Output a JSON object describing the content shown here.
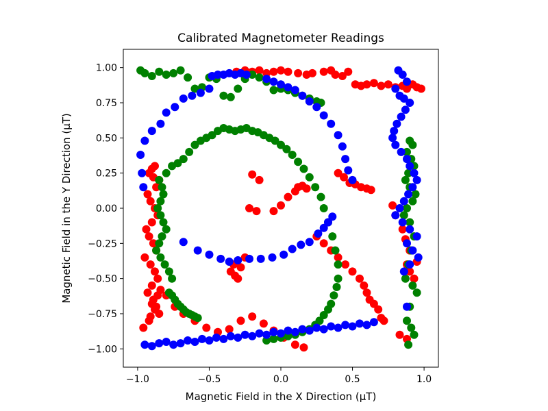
{
  "chart_data": {
    "type": "scatter",
    "title": "Calibrated Magnetometer Readings",
    "xlabel": "Magnetic Field in the X Direction (μT)",
    "ylabel": "Magnetic Field in the Y Direction (μT)",
    "xlim": [
      -1.1,
      1.1
    ],
    "ylim": [
      -1.13,
      1.13
    ],
    "xticks": [
      -1.0,
      -0.5,
      0.0,
      0.5,
      1.0
    ],
    "xtick_labels": [
      "−1.0",
      "−0.5",
      "0.0",
      "0.5",
      "1.0"
    ],
    "yticks": [
      -1.0,
      -0.75,
      -0.5,
      -0.25,
      0.0,
      0.25,
      0.5,
      0.75,
      1.0
    ],
    "ytick_labels": [
      "−1.00",
      "−0.75",
      "−0.50",
      "−0.25",
      "0.00",
      "0.25",
      "0.50",
      "0.75",
      "1.00"
    ],
    "grid": false,
    "legend": "none",
    "series": [
      {
        "color": "#ff0000",
        "x": [
          -0.31,
          -0.25,
          -0.2,
          -0.15,
          -0.1,
          -0.05,
          0.0,
          0.05,
          0.12,
          0.18,
          0.22,
          0.3,
          0.35,
          0.38,
          0.43,
          0.47,
          0.52,
          0.56,
          0.6,
          0.65,
          0.7,
          0.75,
          0.8,
          0.85,
          0.88,
          0.92,
          0.95,
          0.98,
          -0.88,
          -0.9,
          -0.92,
          -0.89,
          -0.85,
          -0.87,
          -0.93,
          -0.91,
          -0.88,
          -0.86,
          -0.9,
          -0.94,
          -0.92,
          -0.89,
          -0.87,
          -0.95,
          -0.91,
          -0.88,
          -0.86,
          -0.9,
          -0.93,
          -0.89,
          -0.87,
          -0.85,
          -0.92,
          -0.96,
          -0.9,
          -0.88,
          -0.84,
          -0.86,
          -0.91,
          -0.8,
          -0.74,
          -0.68,
          -0.6,
          -0.52,
          -0.44,
          -0.36,
          -0.28,
          -0.2,
          -0.12,
          -0.05,
          0.02,
          0.1,
          0.16,
          -0.2,
          -0.15,
          -0.22,
          -0.17,
          -0.05,
          0.0,
          0.05,
          0.1,
          0.12,
          0.15,
          0.18,
          -0.3,
          -0.32,
          -0.35,
          -0.28,
          -0.33,
          -0.25,
          0.4,
          0.44,
          0.48,
          0.52,
          0.56,
          0.6,
          0.63,
          0.72,
          0.7,
          0.68,
          0.65,
          0.62,
          0.6,
          0.58,
          0.55,
          0.5,
          0.45,
          0.4,
          0.35,
          0.3,
          0.25,
          0.88,
          0.9,
          0.93,
          0.95,
          0.9,
          0.87,
          0.85,
          0.8,
          0.78,
          0.83,
          0.88
        ],
        "y": [
          0.97,
          0.98,
          0.97,
          0.98,
          0.96,
          0.97,
          0.98,
          0.97,
          0.96,
          0.95,
          0.96,
          0.97,
          0.98,
          0.95,
          0.94,
          0.97,
          0.88,
          0.87,
          0.88,
          0.89,
          0.87,
          0.88,
          0.86,
          0.87,
          0.85,
          0.88,
          0.86,
          0.85,
          0.3,
          0.28,
          0.25,
          0.22,
          0.2,
          0.15,
          0.1,
          0.05,
          0.0,
          -0.05,
          -0.1,
          -0.15,
          -0.2,
          -0.25,
          -0.3,
          -0.35,
          -0.4,
          -0.45,
          -0.5,
          -0.55,
          -0.6,
          -0.65,
          -0.7,
          -0.75,
          -0.8,
          -0.85,
          -0.68,
          -0.72,
          -0.58,
          -0.62,
          -0.77,
          -0.62,
          -0.7,
          -0.75,
          -0.8,
          -0.85,
          -0.88,
          -0.86,
          -0.8,
          -0.77,
          -0.82,
          -0.87,
          -0.92,
          -0.97,
          -0.99,
          0.24,
          0.2,
          0.0,
          -0.02,
          -0.02,
          0.02,
          0.08,
          0.12,
          0.15,
          0.16,
          0.14,
          -0.5,
          -0.48,
          -0.45,
          -0.42,
          -0.4,
          -0.35,
          0.25,
          0.22,
          0.18,
          0.17,
          0.15,
          0.14,
          0.13,
          -0.8,
          -0.78,
          -0.72,
          -0.68,
          -0.65,
          -0.6,
          -0.55,
          -0.5,
          -0.45,
          -0.4,
          -0.35,
          -0.3,
          -0.25,
          -0.2,
          -0.4,
          -0.45,
          -0.5,
          -0.38,
          -0.3,
          -0.22,
          -0.15,
          -0.05,
          0.02,
          -0.9,
          -0.93
        ]
      },
      {
        "color": "#008000",
        "x": [
          -0.98,
          -0.95,
          -0.9,
          -0.85,
          -0.8,
          -0.75,
          -0.7,
          -0.65,
          -0.6,
          -0.55,
          -0.5,
          -0.45,
          -0.4,
          -0.35,
          -0.3,
          -0.25,
          -0.2,
          -0.15,
          -0.1,
          -0.05,
          0.0,
          0.05,
          0.1,
          0.15,
          0.2,
          0.25,
          0.28,
          -0.8,
          -0.76,
          -0.72,
          -0.68,
          -0.64,
          -0.6,
          -0.56,
          -0.52,
          -0.48,
          -0.44,
          -0.4,
          -0.36,
          -0.32,
          -0.28,
          -0.24,
          -0.2,
          -0.16,
          -0.12,
          -0.08,
          -0.04,
          0.0,
          0.04,
          0.08,
          0.12,
          0.16,
          0.2,
          0.24,
          0.28,
          0.3,
          0.33,
          0.36,
          0.38,
          0.4,
          0.4,
          0.39,
          0.37,
          0.35,
          0.33,
          0.3,
          0.27,
          0.24,
          0.2,
          0.15,
          0.1,
          0.05,
          0.0,
          -0.05,
          -0.1,
          -0.78,
          -0.76,
          -0.74,
          -0.72,
          -0.7,
          -0.68,
          -0.66,
          -0.64,
          -0.62,
          -0.6,
          -0.58,
          -0.85,
          -0.83,
          -0.82,
          -0.84,
          -0.86,
          -0.84,
          -0.82,
          -0.8,
          -0.83,
          -0.85,
          -0.87,
          -0.84,
          -0.81,
          -0.78,
          -0.76,
          0.9,
          0.92,
          0.88,
          0.91,
          0.93,
          0.89,
          0.87,
          0.9,
          0.94,
          0.92,
          0.88,
          0.86,
          0.9,
          0.93,
          0.91,
          0.89,
          0.87,
          0.92,
          0.95,
          0.9,
          0.88,
          0.91,
          0.93,
          0.89
        ],
        "y": [
          0.98,
          0.96,
          0.94,
          0.97,
          0.95,
          0.96,
          0.98,
          0.93,
          0.85,
          0.86,
          0.93,
          0.92,
          0.8,
          0.79,
          0.85,
          0.92,
          0.95,
          0.93,
          0.9,
          0.84,
          0.85,
          0.84,
          0.82,
          0.8,
          0.78,
          0.76,
          0.75,
          0.25,
          0.3,
          0.32,
          0.35,
          0.4,
          0.45,
          0.48,
          0.5,
          0.52,
          0.55,
          0.57,
          0.56,
          0.55,
          0.56,
          0.57,
          0.55,
          0.54,
          0.52,
          0.5,
          0.48,
          0.45,
          0.42,
          0.38,
          0.33,
          0.28,
          0.22,
          0.15,
          0.08,
          0.0,
          -0.1,
          -0.2,
          -0.3,
          -0.4,
          -0.5,
          -0.56,
          -0.62,
          -0.68,
          -0.72,
          -0.76,
          -0.8,
          -0.83,
          -0.86,
          -0.88,
          -0.9,
          -0.91,
          -0.92,
          -0.93,
          -0.94,
          -0.6,
          -0.62,
          -0.65,
          -0.68,
          -0.7,
          -0.72,
          -0.74,
          -0.75,
          -0.76,
          -0.77,
          -0.78,
          0.2,
          0.15,
          0.1,
          0.05,
          0.0,
          -0.05,
          -0.1,
          -0.15,
          -0.2,
          -0.25,
          -0.3,
          -0.35,
          -0.4,
          -0.45,
          -0.5,
          0.48,
          0.45,
          0.4,
          0.35,
          0.3,
          0.25,
          0.2,
          0.15,
          0.1,
          0.05,
          0.0,
          -0.05,
          -0.1,
          -0.2,
          -0.3,
          -0.4,
          -0.5,
          -0.55,
          -0.6,
          -0.7,
          -0.8,
          -0.85,
          -0.9,
          -0.97
        ]
      },
      {
        "color": "#0000ff",
        "x": [
          -0.48,
          -0.44,
          -0.4,
          -0.36,
          -0.32,
          -0.28,
          -0.24,
          -0.5,
          -0.56,
          -0.62,
          -0.68,
          -0.74,
          -0.8,
          -0.84,
          -0.9,
          -0.95,
          -0.98,
          -0.97,
          -0.96,
          -0.1,
          -0.05,
          0.0,
          0.05,
          0.1,
          0.15,
          0.2,
          0.25,
          0.3,
          0.35,
          0.4,
          0.43,
          0.45,
          0.47,
          0.5,
          -0.68,
          -0.58,
          -0.5,
          -0.42,
          -0.36,
          -0.3,
          -0.22,
          -0.14,
          -0.06,
          0.02,
          0.08,
          0.14,
          0.2,
          0.26,
          0.3,
          0.33,
          0.36,
          -0.95,
          -0.9,
          -0.85,
          -0.8,
          -0.75,
          -0.7,
          -0.65,
          -0.6,
          -0.55,
          -0.5,
          -0.45,
          -0.4,
          -0.35,
          -0.3,
          -0.25,
          -0.2,
          -0.15,
          -0.1,
          -0.05,
          0.0,
          0.05,
          0.1,
          0.15,
          0.2,
          0.25,
          0.3,
          0.35,
          0.4,
          0.45,
          0.5,
          0.55,
          0.6,
          0.65,
          0.82,
          0.85,
          0.88,
          0.8,
          0.83,
          0.86,
          0.9,
          0.87,
          0.84,
          0.81,
          0.79,
          0.78,
          0.8,
          0.84,
          0.88,
          0.9,
          0.93,
          0.95,
          0.92,
          0.89,
          0.86,
          0.83,
          0.8,
          0.85,
          0.9,
          0.95,
          0.88,
          0.92,
          0.96,
          0.9,
          0.86,
          0.88
        ],
        "y": [
          0.94,
          0.95,
          0.95,
          0.96,
          0.95,
          0.96,
          0.95,
          0.85,
          0.82,
          0.8,
          0.78,
          0.72,
          0.68,
          0.6,
          0.55,
          0.48,
          0.38,
          0.25,
          0.15,
          0.92,
          0.9,
          0.88,
          0.86,
          0.84,
          0.8,
          0.76,
          0.72,
          0.66,
          0.6,
          0.52,
          0.44,
          0.35,
          0.27,
          0.2,
          -0.24,
          -0.3,
          -0.33,
          -0.36,
          -0.38,
          -0.37,
          -0.36,
          -0.36,
          -0.35,
          -0.33,
          -0.29,
          -0.26,
          -0.24,
          -0.18,
          -0.14,
          -0.1,
          -0.06,
          -0.97,
          -0.98,
          -0.96,
          -0.95,
          -0.97,
          -0.96,
          -0.94,
          -0.95,
          -0.93,
          -0.94,
          -0.92,
          -0.93,
          -0.91,
          -0.92,
          -0.9,
          -0.91,
          -0.89,
          -0.9,
          -0.88,
          -0.89,
          -0.87,
          -0.88,
          -0.86,
          -0.87,
          -0.85,
          -0.86,
          -0.84,
          -0.85,
          -0.83,
          -0.84,
          -0.82,
          -0.83,
          -0.81,
          0.98,
          0.95,
          0.9,
          0.85,
          0.8,
          0.78,
          0.75,
          0.7,
          0.65,
          0.6,
          0.55,
          0.5,
          0.45,
          0.4,
          0.35,
          0.3,
          0.25,
          0.2,
          0.15,
          0.1,
          0.05,
          0.0,
          -0.05,
          -0.1,
          -0.15,
          -0.2,
          -0.25,
          -0.3,
          -0.35,
          -0.4,
          -0.45,
          -0.7
        ]
      }
    ]
  }
}
